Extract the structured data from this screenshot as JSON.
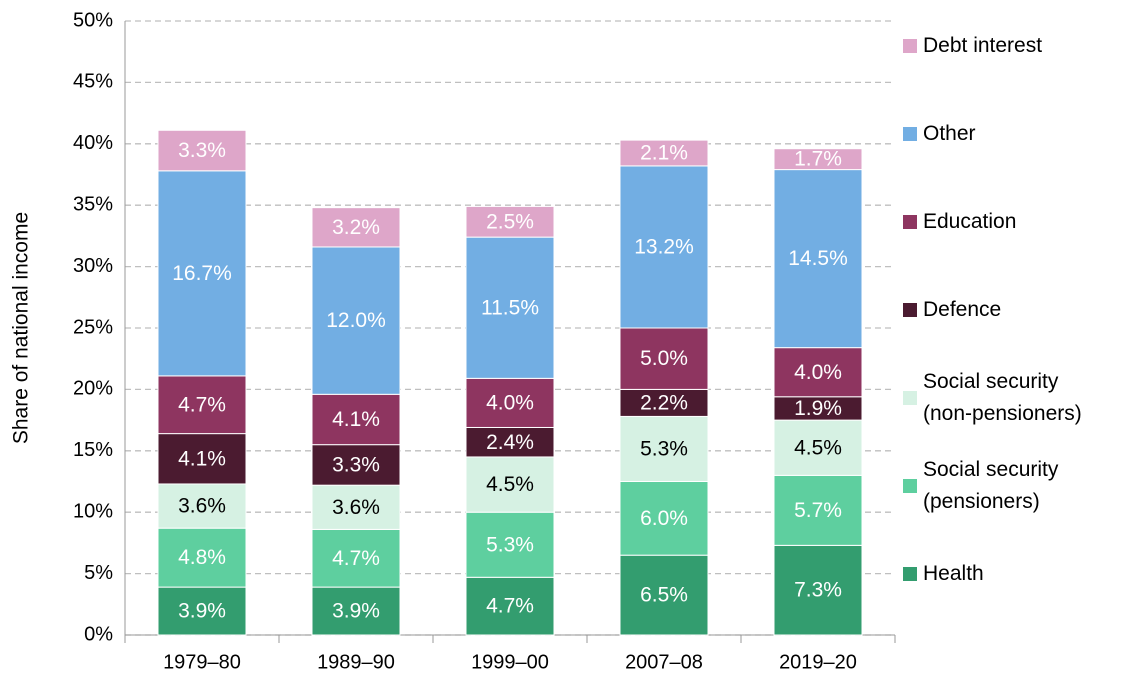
{
  "chart_data": {
    "type": "stacked_bar",
    "y_label": "Share of national income",
    "categories": [
      "1979–80",
      "1989–90",
      "1999–00",
      "2007–08",
      "2019–20"
    ],
    "series": [
      {
        "name": "Health",
        "color": "#339d6f",
        "values": [
          3.9,
          3.9,
          4.7,
          6.5,
          7.3
        ],
        "value_labels": [
          "3.9%",
          "3.9%",
          "4.7%",
          "6.5%",
          "7.3%"
        ]
      },
      {
        "name": "Social security (pensioners)",
        "color": "#5ecf9f",
        "values": [
          4.8,
          4.7,
          5.3,
          6.0,
          5.7
        ],
        "value_labels": [
          "4.8%",
          "4.7%",
          "5.3%",
          "6.0%",
          "5.7%"
        ]
      },
      {
        "name": "Social security (non-pensioners)",
        "color": "#d6f1e3",
        "values": [
          3.6,
          3.6,
          4.5,
          5.3,
          4.5
        ],
        "value_labels": [
          "3.6%",
          "3.6%",
          "4.5%",
          "5.3%",
          "4.5%"
        ]
      },
      {
        "name": "Defence",
        "color": "#4b1b30",
        "values": [
          4.1,
          3.3,
          2.4,
          2.2,
          1.9
        ],
        "value_labels": [
          "4.1%",
          "3.3%",
          "2.4%",
          "2.2%",
          "1.9%"
        ]
      },
      {
        "name": "Education",
        "color": "#8e3560",
        "values": [
          4.7,
          4.1,
          4.0,
          5.0,
          4.0
        ],
        "value_labels": [
          "4.7%",
          "4.1%",
          "4.0%",
          "5.0%",
          "4.0%"
        ]
      },
      {
        "name": "Other",
        "color": "#72aee3",
        "values": [
          16.7,
          12.0,
          11.5,
          13.2,
          14.5
        ],
        "value_labels": [
          "16.7%",
          "12.0%",
          "11.5%",
          "13.2%",
          "14.5%"
        ]
      },
      {
        "name": "Debt interest",
        "color": "#dea6c9",
        "values": [
          3.3,
          3.2,
          2.5,
          2.1,
          1.7
        ],
        "value_labels": [
          "3.3%",
          "3.2%",
          "2.5%",
          "2.1%",
          "1.7%"
        ]
      }
    ],
    "ylim": [
      0,
      50
    ],
    "yticks": [
      {
        "value": 0,
        "label": "0%"
      },
      {
        "value": 5,
        "label": "5%"
      },
      {
        "value": 10,
        "label": "10%"
      },
      {
        "value": 15,
        "label": "15%"
      },
      {
        "value": 20,
        "label": "20%"
      },
      {
        "value": 25,
        "label": "25%"
      },
      {
        "value": 30,
        "label": "30%"
      },
      {
        "value": 35,
        "label": "35%"
      },
      {
        "value": 40,
        "label": "40%"
      },
      {
        "value": 45,
        "label": "45%"
      },
      {
        "value": 50,
        "label": "50%"
      }
    ],
    "grid": true,
    "legend": "right"
  }
}
